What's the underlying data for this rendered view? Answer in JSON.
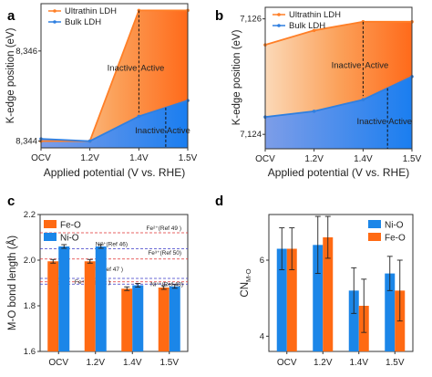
{
  "chart_data": [
    {
      "panel": "a",
      "type": "area",
      "xlabel": "Applied potential (V vs. RHE)",
      "ylabel": "K-edge position (eV)",
      "categories": [
        "OCV",
        "1.2V",
        "1.4V",
        "1.5V"
      ],
      "x": [
        0,
        1.2,
        1.4,
        1.5
      ],
      "xticks": [
        0,
        1.2,
        1.4,
        1.5
      ],
      "yticks": [
        8344,
        8346
      ],
      "ylim": [
        8343.85,
        8347.05
      ],
      "series": [
        {
          "name": "Ultrathin LDH",
          "color": "#ff7f27",
          "values": [
            8344.0,
            8344.0,
            8346.9,
            8346.9
          ]
        },
        {
          "name": "Bulk LDH",
          "color": "#2f7fe0",
          "values": [
            8344.05,
            8344.0,
            8344.55,
            8344.9
          ]
        }
      ],
      "annotations": {
        "inactive": "Inactive",
        "active": "Active",
        "upper_divider_x": 1.4,
        "lower_divider_x": 1.455
      },
      "legend": "top-left"
    },
    {
      "panel": "b",
      "type": "area",
      "xlabel": "Applied potential (V vs. RHE)",
      "ylabel": "K-edge position (eV)",
      "categories": [
        "OCV",
        "1.2V",
        "1.4V",
        "1.5V"
      ],
      "x": [
        0,
        1.2,
        1.4,
        1.5
      ],
      "xticks": [
        0,
        1.2,
        1.4,
        1.5
      ],
      "yticks": [
        7124,
        7126
      ],
      "ylim": [
        7123.75,
        7126.2
      ],
      "series": [
        {
          "name": "Ultrathin LDH",
          "color": "#ff7f27",
          "values": [
            7125.55,
            7125.8,
            7125.95,
            7125.95
          ]
        },
        {
          "name": "Bulk LDH",
          "color": "#2f7fe0",
          "values": [
            7124.3,
            7124.4,
            7124.6,
            7125.0
          ]
        }
      ],
      "annotations": {
        "inactive": "Inactive",
        "active": "Active",
        "upper_divider_x": 1.4,
        "lower_divider_x": 1.45
      },
      "legend": "top-left"
    },
    {
      "panel": "c",
      "type": "bar",
      "xlabel": "",
      "ylabel": "M-O bond length (Å)",
      "categories": [
        "OCV",
        "1.2V",
        "1.4V",
        "1.5V"
      ],
      "ylim": [
        1.6,
        2.2
      ],
      "yticks": [
        1.6,
        1.8,
        2.0,
        2.2
      ],
      "series": [
        {
          "name": "Fe-O",
          "color": "#ff6a13",
          "values": [
            1.995,
            1.995,
            1.875,
            1.88
          ],
          "errors": [
            0.008,
            0.008,
            0.008,
            0.008
          ]
        },
        {
          "name": "Ni-O",
          "color": "#1b86e8",
          "values": [
            2.06,
            2.06,
            1.89,
            1.885
          ],
          "errors": [
            0.008,
            0.008,
            0.008,
            0.008
          ]
        }
      ],
      "reference_lines": [
        {
          "label": "Fe²⁺(Ref 49 )",
          "value": 2.12,
          "color": "#e03030"
        },
        {
          "label": "Ni²⁺(Ref 46)",
          "value": 2.05,
          "color": "#3a3ac8"
        },
        {
          "label": "Fe³⁺(Ref 50)",
          "value": 2.005,
          "color": "#e03030"
        },
        {
          "label": "Ni³⁺(Ref 47 )",
          "value": 1.92,
          "color": "#3a3ac8"
        },
        {
          "label": "Fe⁴⁺(Ref 51 )",
          "value": 1.905,
          "color": "#e03030"
        },
        {
          "label": "Ni⁴⁺(Ref 48)",
          "value": 1.895,
          "color": "#3a3ac8"
        }
      ],
      "legend": "top-left"
    },
    {
      "panel": "d",
      "type": "bar",
      "xlabel": "",
      "ylabel": "CN",
      "ylabel_sub": "M-O",
      "categories": [
        "OCV",
        "1.2V",
        "1.4V",
        "1.5V"
      ],
      "ylim": [
        3.6,
        7.2
      ],
      "yticks": [
        4,
        6
      ],
      "series": [
        {
          "name": "Ni-O",
          "color": "#1b86e8",
          "values": [
            6.3,
            6.4,
            5.2,
            5.65
          ],
          "errors": [
            0.55,
            0.75,
            0.6,
            0.45
          ]
        },
        {
          "name": "Fe-O",
          "color": "#ff6a13",
          "values": [
            6.3,
            6.6,
            4.8,
            5.2
          ],
          "errors": [
            0.55,
            0.55,
            0.7,
            0.8
          ]
        }
      ],
      "legend": "top-right"
    }
  ]
}
